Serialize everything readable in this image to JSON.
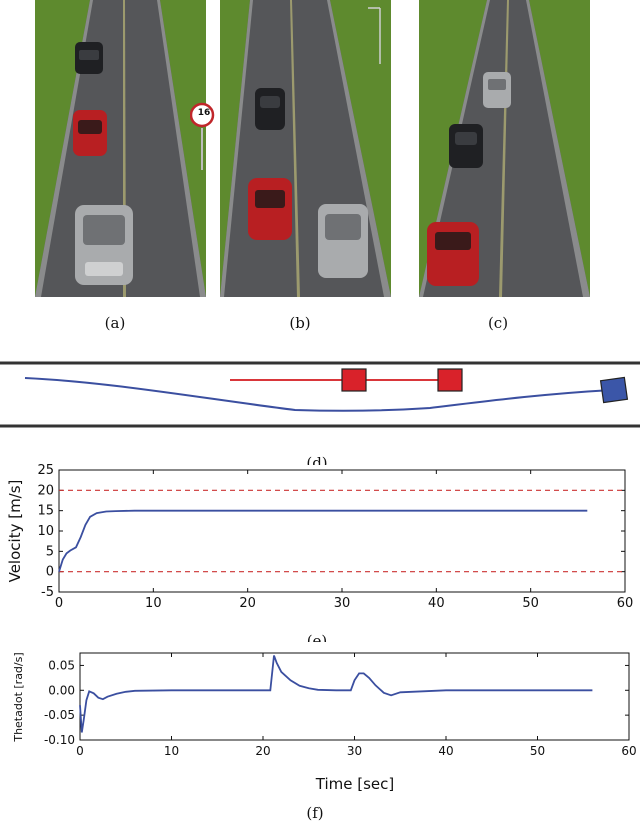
{
  "captions": {
    "a": "(a)",
    "b": "(b)",
    "c": "(c)",
    "d": "(d)",
    "e": "(e)",
    "f": "(f)"
  },
  "scene_b": {
    "sign_text": "16"
  },
  "chart_data": [
    {
      "id": "velocity",
      "type": "line",
      "title": "",
      "xlabel": "",
      "ylabel": "Velocity [m/s]",
      "xlim": [
        0,
        60
      ],
      "ylim": [
        -5,
        25
      ],
      "xticks": [
        0,
        10,
        20,
        30,
        40,
        50,
        60
      ],
      "yticks": [
        -5,
        0,
        5,
        10,
        15,
        20,
        25
      ],
      "hlines": [
        {
          "y": 20,
          "style": "dashed",
          "color": "#cc3333"
        },
        {
          "y": 0,
          "style": "dashed",
          "color": "#cc3333"
        }
      ],
      "series": [
        {
          "color": "#3b4fa0",
          "x": [
            0,
            0.4,
            0.8,
            1.2,
            1.8,
            2.3,
            2.8,
            3.3,
            4.0,
            5.0,
            6.0,
            8.0,
            10,
            20,
            30,
            40,
            50,
            56
          ],
          "y": [
            0,
            3,
            4.5,
            5.2,
            6,
            8.5,
            11.5,
            13.5,
            14.4,
            14.8,
            14.9,
            15,
            15,
            15,
            15,
            15,
            15,
            15
          ]
        }
      ]
    },
    {
      "id": "thetadot",
      "type": "line",
      "title": "",
      "xlabel": "Time [sec]",
      "ylabel": "Thetadot [rad/s]",
      "xlim": [
        0,
        60
      ],
      "ylim": [
        -0.1,
        0.075
      ],
      "xticks": [
        0,
        10,
        20,
        30,
        40,
        50,
        60
      ],
      "yticks": [
        -0.1,
        -0.05,
        0.0,
        0.05
      ],
      "yticklabels": [
        "-0.10",
        "-0.05",
        "0.00",
        "0.05"
      ],
      "series": [
        {
          "color": "#3b4fa0",
          "x": [
            0,
            0.2,
            0.4,
            0.7,
            1.0,
            1.5,
            2.0,
            2.5,
            3.0,
            4.0,
            5.0,
            6.0,
            10,
            15,
            20,
            20.8,
            21.2,
            21.5,
            22.0,
            23.0,
            24.0,
            25.0,
            26.0,
            28.0,
            29.6,
            30.0,
            30.5,
            31.0,
            31.6,
            32.3,
            33.2,
            34.0,
            35.0,
            40,
            50,
            56
          ],
          "y": [
            -0.03,
            -0.085,
            -0.06,
            -0.02,
            -0.002,
            -0.006,
            -0.015,
            -0.018,
            -0.013,
            -0.007,
            -0.003,
            -0.001,
            0,
            0,
            0,
            0.0,
            0.07,
            0.055,
            0.037,
            0.02,
            0.009,
            0.004,
            0.001,
            0.0,
            0.0,
            0.02,
            0.034,
            0.034,
            0.025,
            0.01,
            -0.005,
            -0.01,
            -0.004,
            0,
            0,
            0
          ]
        }
      ]
    }
  ]
}
